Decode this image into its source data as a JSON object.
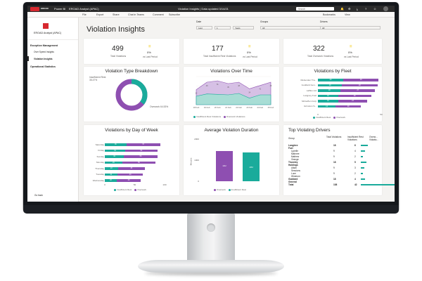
{
  "topbar": {
    "brand": "EROAD",
    "app": "Power BI",
    "workspace": "EROAD Analyst (APAC)",
    "title": "Violation Insights  |  Data updated 3/14/21",
    "search_placeholder": "Search"
  },
  "menubar": {
    "file": "File",
    "export": "Export",
    "share": "Share",
    "chat": "Chat in Teams",
    "comment": "Comment",
    "subscribe": "Subscribe",
    "bookmarks": "Bookmarks",
    "view": "View"
  },
  "sidebar": {
    "app_name": "EROAD Analyst (APAC)",
    "sections": [
      {
        "title": "Exception Management",
        "items": [
          "Over Speed Insights",
          "Violation Insights"
        ]
      },
      {
        "title": "Operational Statistics",
        "items": []
      }
    ],
    "go_back": "Go back"
  },
  "header": {
    "page_title": "Violation Insights",
    "filters": [
      {
        "label": "Date",
        "mode": "Last",
        "value": "1",
        "unit": "Years"
      },
      {
        "label": "Groups",
        "value": "All"
      },
      {
        "label": "Drivers",
        "value": "All"
      }
    ]
  },
  "kpis": [
    {
      "value": "499",
      "label": "Total Violations",
      "change": "0%",
      "change_label": "vs Last Period"
    },
    {
      "value": "177",
      "label": "Total Insufficient Rest Violations",
      "change": "0%",
      "change_label": "vs Last Period"
    },
    {
      "value": "322",
      "label": "Total Overwork Violations",
      "change": "0%",
      "change_label": "vs Last Period"
    }
  ],
  "colors": {
    "insufficient": "#1aab9b",
    "overwork": "#8e4fb1"
  },
  "chart_data": [
    {
      "type": "pie",
      "title": "Violation Type Breakdown",
      "labels": [
        "Insufficient Rest",
        "Overwork"
      ],
      "values": [
        35.47,
        64.53
      ],
      "data_labels": [
        "Insufficient Rest\n35.47%",
        "Overwork 64.53%"
      ]
    },
    {
      "type": "area",
      "title": "Violations Over Time",
      "categories": [
        "18 Feb",
        "19 Feb",
        "20 Feb",
        "21 Feb",
        "22 Feb",
        "23 Feb",
        "24 Feb",
        "25 Feb"
      ],
      "series": [
        {
          "name": "Insufficient Rest Violations",
          "values": [
            18,
            23,
            22,
            21,
            24,
            14,
            21,
            21
          ]
        },
        {
          "name": "Overwork Violations",
          "values": [
            32,
            48,
            51,
            45,
            48,
            34,
            41,
            48
          ]
        }
      ],
      "data_labels": [
        "32",
        "48",
        "51",
        "45",
        "48",
        "34",
        "41",
        "48"
      ],
      "ylim": [
        0,
        60
      ]
    },
    {
      "type": "bar",
      "title": "Violations by Fleet",
      "categories": [
        "Mebenden Tra...",
        "Goddard Gen...",
        "Laffles Ltd",
        "Langney Fuel",
        "McGeffen Corp",
        "Grimston S..."
      ],
      "series": [
        {
          "name": "Insufficient Rest",
          "values": [
            20,
            19,
            18,
            16,
            16,
            14
          ]
        },
        {
          "name": "Overwork",
          "values": [
            28,
            28,
            27,
            26,
            23,
            20
          ]
        }
      ],
      "xlim": [
        0,
        50
      ],
      "ticks": [
        "0",
        "50"
      ]
    },
    {
      "type": "bar",
      "title": "Violations by Day of Week",
      "categories": [
        "Saturday",
        "Friday",
        "Sunday",
        "Monday",
        "Thursday",
        "Tuesday",
        "Wednesday"
      ],
      "series": [
        {
          "name": "Insufficient Rest",
          "values": [
            36,
            34,
            32,
            29,
            22,
            21,
            20
          ]
        },
        {
          "name": "Overwork",
          "values": [
            57,
            54,
            56,
            56,
            45,
            43,
            40
          ]
        }
      ],
      "xlim": [
        0,
        100
      ],
      "ticks": [
        "0",
        "50",
        "100"
      ]
    },
    {
      "type": "bar",
      "title": "Average Violation Duration",
      "categories": [
        "Overwork",
        "Insufficient Rest"
      ],
      "values": [
        1442,
        1363
      ],
      "ylabel": "Minutes",
      "ylim": [
        0,
        2000
      ],
      "ticks": [
        "0",
        "1000",
        "2000"
      ]
    }
  ],
  "table": {
    "title": "Top Violating Drivers",
    "columns": [
      "Group",
      "Total Violations",
      "Insufficient Rest Violations",
      "Overw... Violatio..."
    ],
    "rows": [
      {
        "group": "Langtree Fuel",
        "total": "18",
        "insufficient": "6",
        "over": "",
        "bold": true
      },
      {
        "group": "Lynelle Mahnee",
        "total": "9",
        "insufficient": "4",
        "over": "",
        "bold": false
      },
      {
        "group": "Mathew Orange",
        "total": "9",
        "insufficient": "2",
        "over": "",
        "bold": false
      },
      {
        "group": "Thornley Holdings",
        "total": "18",
        "insufficient": "5",
        "over": "",
        "bold": true
      },
      {
        "group": "Aikan Sessions",
        "total": "9",
        "insufficient": "3",
        "over": "",
        "bold": false
      },
      {
        "group": "Luce Windrum",
        "total": "9",
        "insufficient": "2",
        "over": "",
        "bold": false
      },
      {
        "group": "Goddard General",
        "total": "18",
        "insufficient": "4",
        "over": "",
        "bold": true
      },
      {
        "group": "Total",
        "total": "108",
        "insufficient": "42",
        "over": "",
        "bold": true
      }
    ]
  },
  "legend": {
    "insufficient_rest": "Insufficient Rest",
    "overwork": "Overwork",
    "insufficient_rest_violations": "Insufficient Rest Violations",
    "overwork_violations": "Overwork Violations"
  }
}
